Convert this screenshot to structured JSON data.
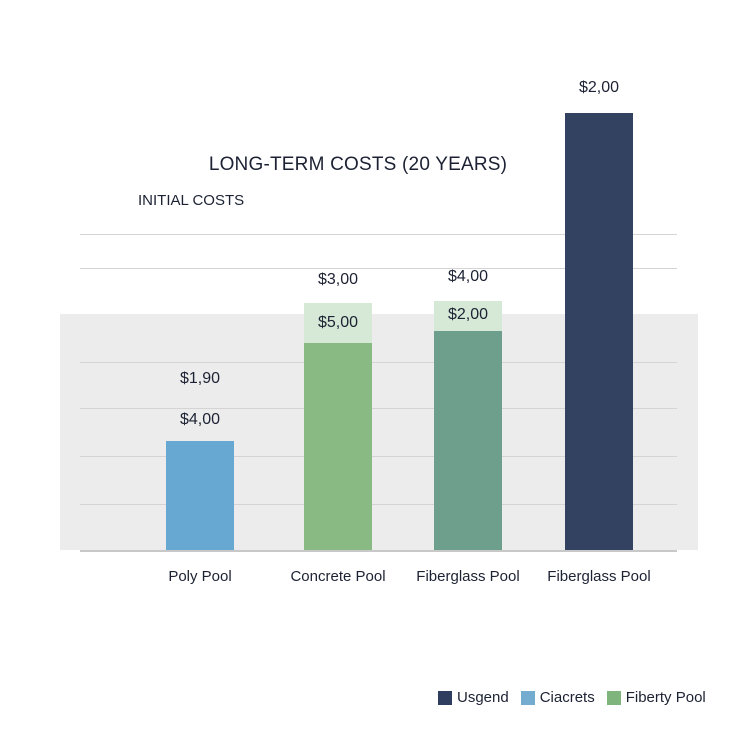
{
  "chart_data": {
    "type": "bar",
    "title": "LONG-TERM COSTS (20 YEARS)",
    "subtitle": "INITIAL COSTS",
    "xlabel": "",
    "ylabel": "",
    "grid": true,
    "legend_position": "bottom-right",
    "categories": [
      "Poly Pool",
      "Concrete Pool",
      "Fiberglass Pool",
      "Fiberglass Pool"
    ],
    "bars": [
      {
        "color": "#67a8d2",
        "upper_label": "$1,90",
        "lower_label": "$4,00"
      },
      {
        "color": "#8aba84",
        "cap_color": "#d6e8d6",
        "upper_label": "$3,00",
        "lower_label": "$5,00"
      },
      {
        "color": "#6e9f8d",
        "cap_color": "#d6e8d6",
        "upper_label": "$4,00",
        "lower_label": "$2,00"
      },
      {
        "color": "#334260",
        "upper_label": "$2,00"
      }
    ],
    "legend": [
      {
        "label": "Usgend",
        "color": "#2f3e5e"
      },
      {
        "label": "Ciacrets",
        "color": "#74acd0"
      },
      {
        "label": "Fiberty Pool",
        "color": "#7fb57c"
      }
    ]
  }
}
